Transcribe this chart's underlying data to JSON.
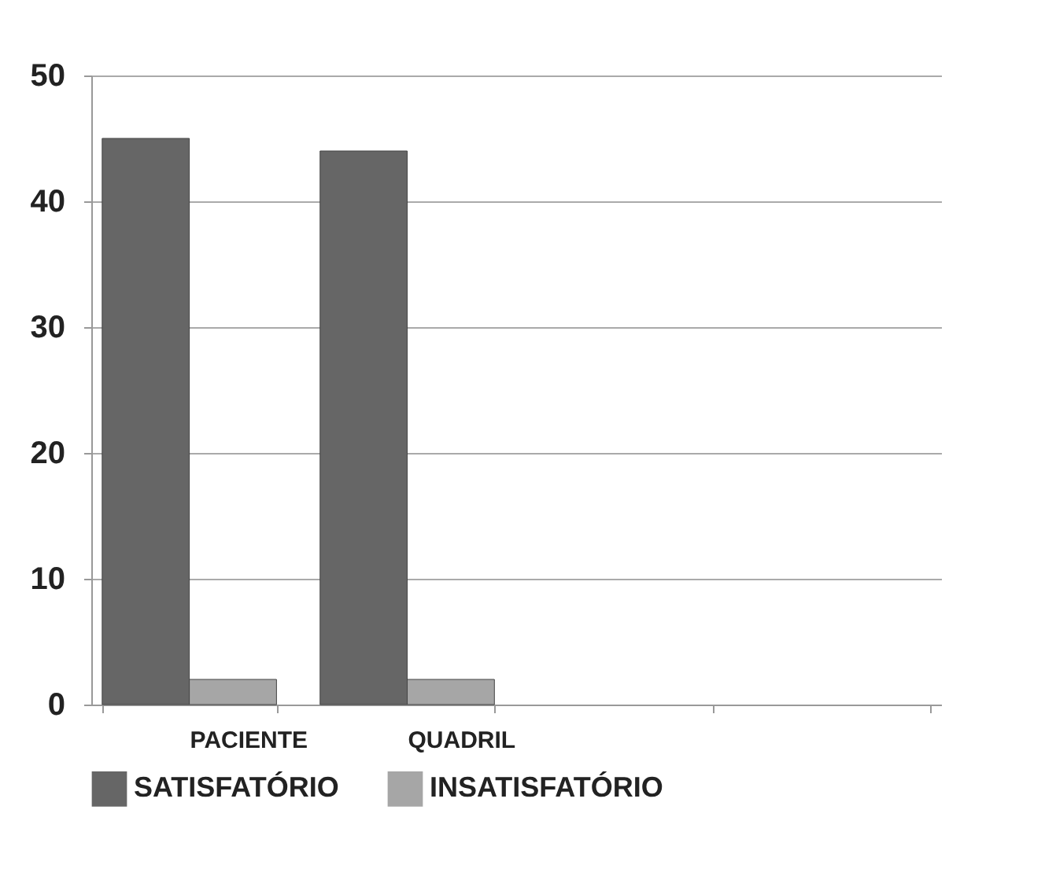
{
  "chart_data": {
    "type": "bar",
    "categories": [
      "PACIENTE",
      "QUADRIL",
      null,
      null
    ],
    "series": [
      {
        "name": "SATISFATÓRIO",
        "color": "#666666",
        "values": [
          45,
          44,
          null,
          null
        ]
      },
      {
        "name": "INSATISFATÓRIO",
        "color": "#a6a6a6",
        "values": [
          2,
          2,
          null,
          null
        ]
      }
    ],
    "ylim": [
      0,
      50
    ],
    "yticks": [
      0,
      10,
      20,
      30,
      40,
      50
    ],
    "grid": "y",
    "legend": "bottom"
  }
}
